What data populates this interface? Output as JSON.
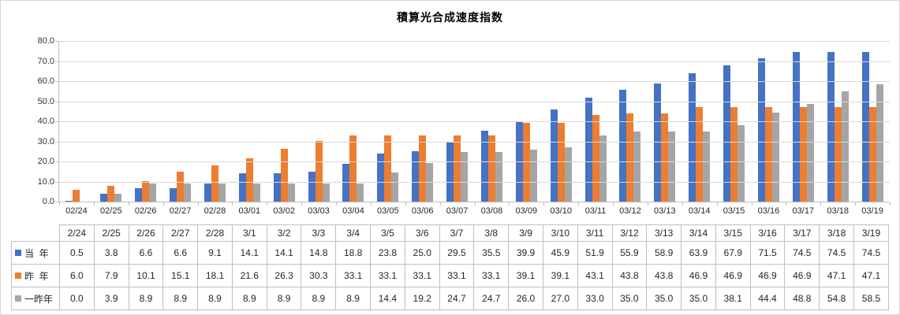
{
  "chart_title": "積算光合成速度指数",
  "colors": {
    "this_year": "#4472c4",
    "last_year": "#ed7d31",
    "two_years_ago": "#a5a5a5",
    "gridline": "#d9d9d9",
    "axis_line": "#bfbfbf",
    "table_border": "#bfbfbf",
    "text": "#262626"
  },
  "chart_data": {
    "type": "bar",
    "title": "積算光合成速度指数",
    "grid": true,
    "legend_position": "table-left-column",
    "ylim": [
      0,
      80
    ],
    "ytick_step": 10,
    "ytick_labels": [
      "80.0",
      "70.0",
      "60.0",
      "50.0",
      "40.0",
      "30.0",
      "20.0",
      "10.0",
      "0.0"
    ],
    "axis_categories": [
      "02/24",
      "02/25",
      "02/26",
      "02/27",
      "02/28",
      "03/01",
      "03/02",
      "03/03",
      "03/04",
      "03/05",
      "03/06",
      "03/07",
      "03/08",
      "03/09",
      "03/10",
      "03/11",
      "03/12",
      "03/13",
      "03/14",
      "03/15",
      "03/16",
      "03/17",
      "03/18",
      "03/19"
    ],
    "table_categories": [
      "2/24",
      "2/25",
      "2/26",
      "2/27",
      "2/28",
      "3/1",
      "3/2",
      "3/3",
      "3/4",
      "3/5",
      "3/6",
      "3/7",
      "3/8",
      "3/9",
      "3/10",
      "3/11",
      "3/12",
      "3/13",
      "3/14",
      "3/15",
      "3/16",
      "3/17",
      "3/18",
      "3/19"
    ],
    "series": [
      {
        "key": "this_year",
        "name": "当  年",
        "color_key": "this_year",
        "values": [
          0.5,
          3.8,
          6.6,
          6.6,
          9.1,
          14.1,
          14.1,
          14.8,
          18.8,
          23.8,
          25.0,
          29.5,
          35.5,
          39.9,
          45.9,
          51.9,
          55.9,
          58.9,
          63.9,
          67.9,
          71.5,
          74.5,
          74.5,
          74.5
        ]
      },
      {
        "key": "last_year",
        "name": "昨  年",
        "color_key": "last_year",
        "values": [
          6.0,
          7.9,
          10.1,
          15.1,
          18.1,
          21.6,
          26.3,
          30.3,
          33.1,
          33.1,
          33.1,
          33.1,
          33.1,
          39.1,
          39.1,
          43.1,
          43.8,
          43.8,
          46.9,
          46.9,
          46.9,
          46.9,
          47.1,
          47.1
        ]
      },
      {
        "key": "two_years_ago",
        "name": "一昨年",
        "color_key": "two_years_ago",
        "values": [
          0.0,
          3.9,
          8.9,
          8.9,
          8.9,
          8.9,
          8.9,
          8.9,
          8.9,
          14.4,
          19.2,
          24.7,
          24.7,
          26.0,
          27.0,
          33.0,
          35.0,
          35.0,
          35.0,
          38.1,
          44.4,
          48.8,
          54.8,
          58.5
        ]
      }
    ]
  }
}
